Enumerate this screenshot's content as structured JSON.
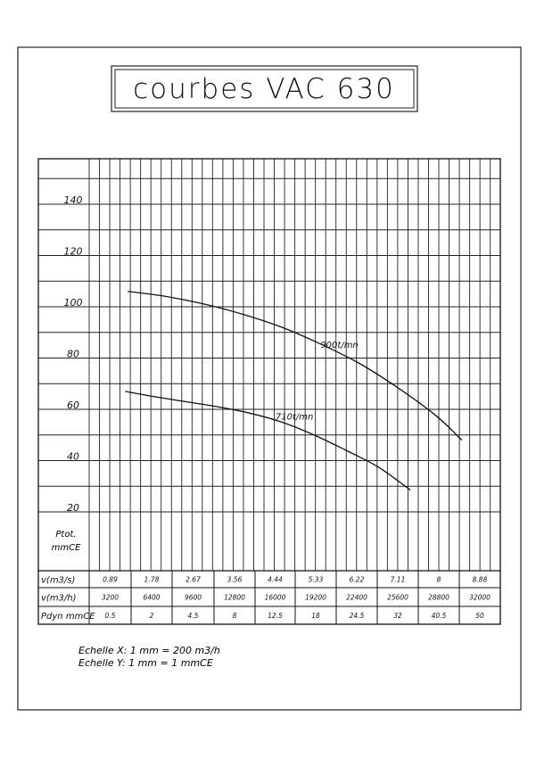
{
  "title": "courbes VAC 630",
  "footer": {
    "scale_x": "Echelle X: 1 mm = 200 m3/h",
    "scale_y": "Echelle Y: 1 mm = 1 mmCE"
  },
  "chart_data": {
    "type": "line",
    "title": "courbes VAC 630",
    "ylabel": [
      "Ptot.",
      "mmCE"
    ],
    "ylim": [
      10,
      155
    ],
    "xlim": [
      0,
      32000
    ],
    "yticks": [
      "140",
      "120",
      "100",
      "80",
      "60",
      "40",
      "20"
    ],
    "ytick_values": [
      140,
      120,
      100,
      80,
      60,
      40,
      20
    ],
    "grid": true,
    "table": {
      "headers": [
        "v(m3/s)",
        "v(m3/h)",
        "Pdyn mmCE"
      ],
      "rows": [
        [
          "0.89",
          "1.78",
          "2.67",
          "3.56",
          "4.44",
          "5.33",
          "6.22",
          "7.11",
          "8",
          "8.88"
        ],
        [
          "3200",
          "6400",
          "9600",
          "12800",
          "16000",
          "19200",
          "22400",
          "25600",
          "28800",
          "32000"
        ],
        [
          "0.5",
          "2",
          "4.5",
          "8",
          "12.5",
          "18",
          "24.5",
          "32",
          "40.5",
          "50"
        ]
      ]
    },
    "series": [
      {
        "name": "900t/mn",
        "x": [
          3000,
          6000,
          9000,
          12000,
          15000,
          18000,
          21000,
          24000,
          27000,
          29000
        ],
        "y": [
          106,
          104,
          101,
          97,
          92,
          85.5,
          78,
          68.5,
          57.5,
          48
        ]
      },
      {
        "name": "710t/mn",
        "x": [
          2800,
          5000,
          7500,
          10000,
          12500,
          15000,
          17500,
          20000,
          22500,
          25000
        ],
        "y": [
          67,
          65,
          63,
          61,
          58.5,
          55,
          50,
          44,
          37.5,
          28.5
        ]
      }
    ],
    "series_label_positions": [
      [
        18000,
        84
      ],
      [
        14500,
        56
      ]
    ]
  }
}
